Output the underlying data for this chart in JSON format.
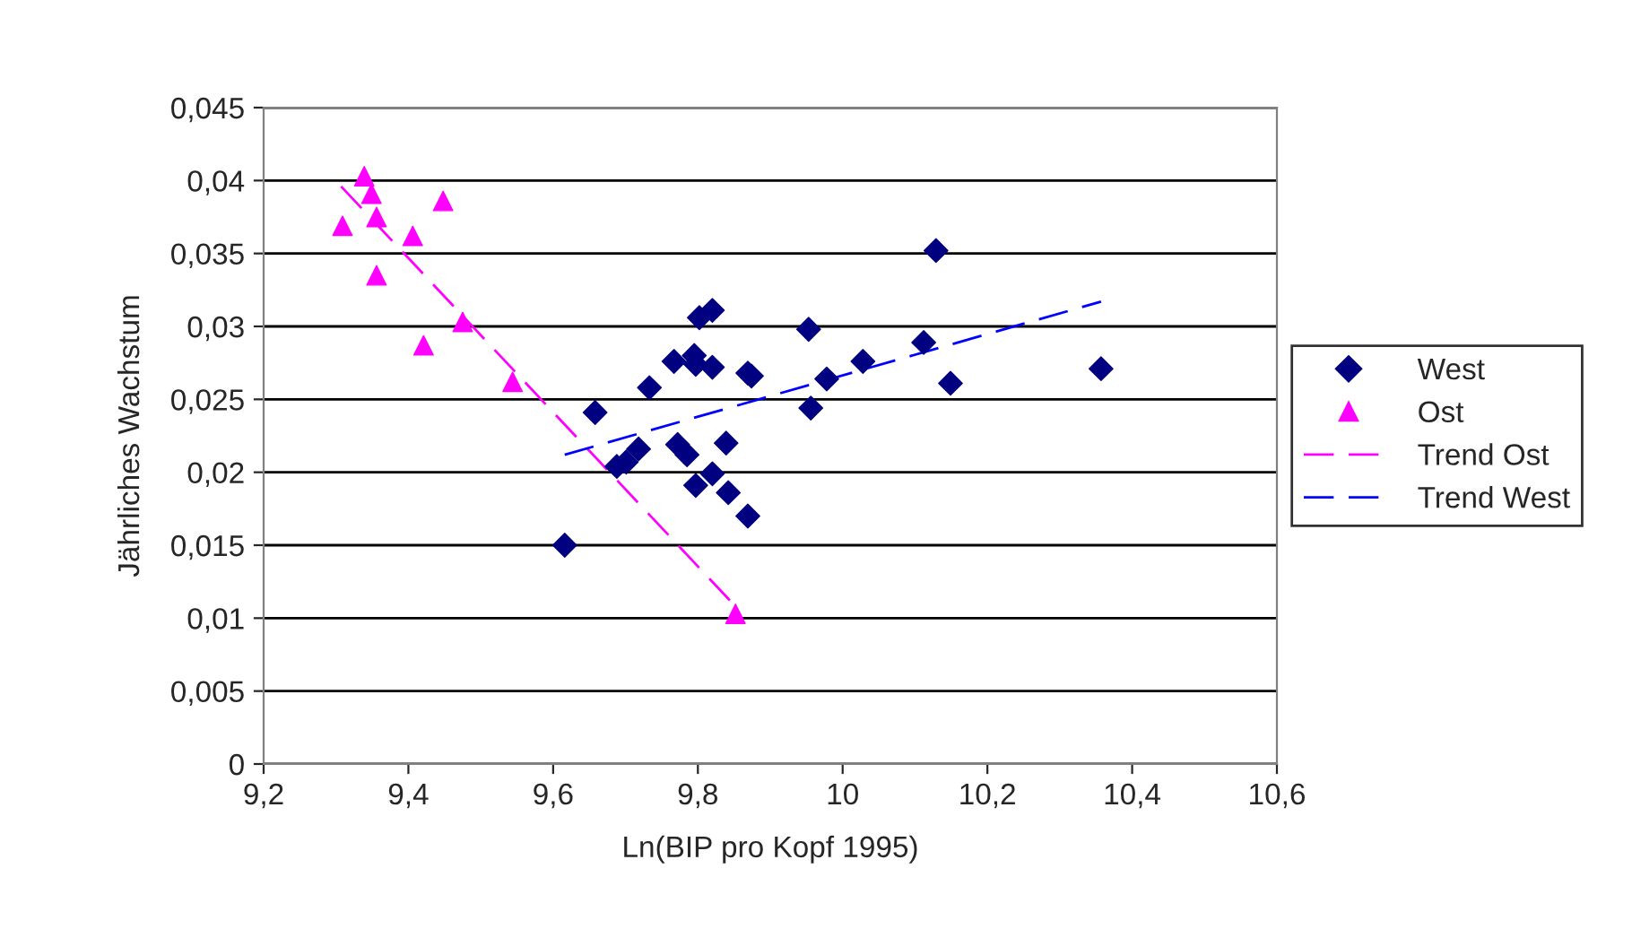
{
  "chart_data": {
    "type": "scatter",
    "xlabel": "Ln(BIP pro Kopf 1995)",
    "ylabel": "Jährliches Wachstum",
    "xlim": [
      9.2,
      10.6
    ],
    "xticks": [
      {
        "value": 9.2,
        "label": "9,2"
      },
      {
        "value": 9.4,
        "label": "9,4"
      },
      {
        "value": 9.6,
        "label": "9,6"
      },
      {
        "value": 9.8,
        "label": "9,8"
      },
      {
        "value": 10,
        "label": "10"
      },
      {
        "value": 10.2,
        "label": "10,2"
      },
      {
        "value": 10.4,
        "label": "10,4"
      },
      {
        "value": 10.6,
        "label": "10,6"
      }
    ],
    "ylim": [
      0,
      0.045
    ],
    "yticks": [
      {
        "value": 0,
        "label": "0"
      },
      {
        "value": 0.005,
        "label": "0,005"
      },
      {
        "value": 0.01,
        "label": "0,01"
      },
      {
        "value": 0.015,
        "label": "0,015"
      },
      {
        "value": 0.02,
        "label": "0,02"
      },
      {
        "value": 0.025,
        "label": "0,025"
      },
      {
        "value": 0.03,
        "label": "0,03"
      },
      {
        "value": 0.035,
        "label": "0,035"
      },
      {
        "value": 0.04,
        "label": "0,04"
      },
      {
        "value": 0.045,
        "label": "0,045"
      }
    ],
    "grid": "y",
    "legend": "right",
    "series": [
      {
        "name": "West",
        "marker": "diamond",
        "color": "#000080",
        "x": [
          9.616,
          9.658,
          9.688,
          9.701,
          9.718,
          9.733,
          9.767,
          9.772,
          9.785,
          9.795,
          9.797,
          9.802,
          9.82,
          9.82,
          9.797,
          9.82,
          9.839,
          9.842,
          9.869,
          9.869,
          9.874,
          9.953,
          9.956,
          9.978,
          10.028,
          10.112,
          10.129,
          10.149,
          10.357
        ],
        "values": [
          0.015,
          0.0241,
          0.0204,
          0.0207,
          0.0216,
          0.0258,
          0.0276,
          0.0219,
          0.0212,
          0.028,
          0.0274,
          0.0306,
          0.0311,
          0.0272,
          0.0191,
          0.0199,
          0.022,
          0.0186,
          0.017,
          0.0268,
          0.0266,
          0.0298,
          0.0244,
          0.0264,
          0.0276,
          0.0289,
          0.0352,
          0.0261,
          0.0271
        ]
      },
      {
        "name": "Ost",
        "marker": "triangle",
        "color": "#ff00ff",
        "x": [
          9.339,
          9.349,
          9.448,
          9.309,
          9.356,
          9.406,
          9.356,
          9.475,
          9.421,
          9.544,
          9.852
        ],
        "values": [
          0.0403,
          0.0391,
          0.0386,
          0.0369,
          0.0375,
          0.0362,
          0.0335,
          0.0303,
          0.0287,
          0.0262,
          0.0103
        ]
      },
      {
        "name": "Trend Ost",
        "type": "line",
        "line_style": "dashed",
        "color": "#ff00ff",
        "x": [
          9.307,
          9.852
        ],
        "values": [
          0.0396,
          0.0108
        ]
      },
      {
        "name": "Trend West",
        "type": "line",
        "line_style": "dashed",
        "color": "#0000ff",
        "x": [
          9.616,
          10.357
        ],
        "values": [
          0.0212,
          0.0317
        ]
      }
    ]
  }
}
